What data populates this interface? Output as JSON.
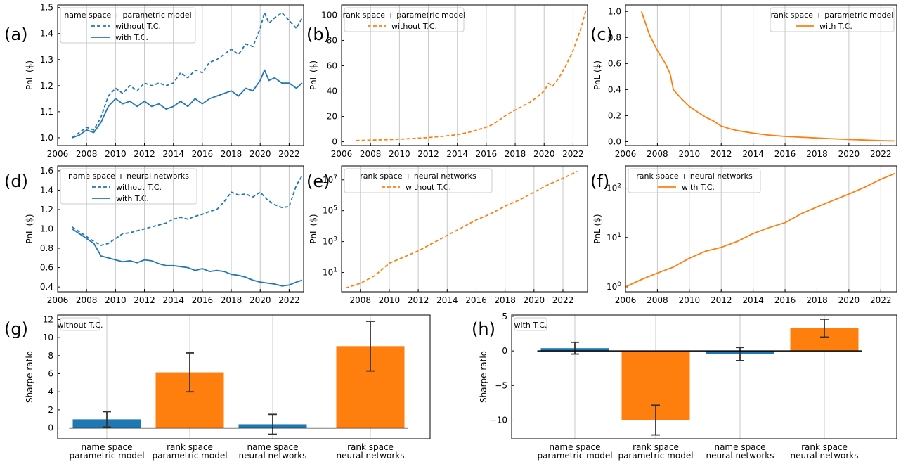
{
  "colors": {
    "blue": "#1f77b4",
    "orange": "#ff7f0e",
    "grid": "#c8c8c8",
    "axis": "#000000",
    "errorbar": "#333333"
  },
  "chart_data": [
    {
      "panel_label": "(a)",
      "type": "line",
      "xlim": [
        2006,
        2023
      ],
      "ylim": [
        0.97,
        1.51
      ],
      "yscale": "linear",
      "ylabel": "PnL ($)",
      "xticks": [
        2006,
        2008,
        2010,
        2012,
        2014,
        2016,
        2018,
        2020,
        2022
      ],
      "yticks": [
        1.0,
        1.1,
        1.2,
        1.3,
        1.4,
        1.5
      ],
      "ytick_labels": [
        "1.0",
        "1.1",
        "1.2",
        "1.3",
        "1.4",
        "1.5"
      ],
      "grid": "vertical",
      "legend": {
        "title": "name space + parametric model",
        "placement": "top-left"
      },
      "series": [
        {
          "name": "without T.C.",
          "color": "#1f77b4",
          "dash": true,
          "x": [
            2007.0,
            2007.5,
            2008.0,
            2008.5,
            2009.0,
            2009.5,
            2010.0,
            2010.5,
            2011.0,
            2011.5,
            2012.0,
            2012.5,
            2013.0,
            2013.5,
            2014.0,
            2014.5,
            2015.0,
            2015.5,
            2016.0,
            2016.5,
            2017.0,
            2017.5,
            2018.0,
            2018.5,
            2019.0,
            2019.5,
            2020.0,
            2020.3,
            2020.6,
            2021.0,
            2021.5,
            2022.0,
            2022.5,
            2022.9
          ],
          "y": [
            1.0,
            1.02,
            1.04,
            1.03,
            1.08,
            1.16,
            1.19,
            1.17,
            1.2,
            1.18,
            1.21,
            1.2,
            1.21,
            1.2,
            1.21,
            1.25,
            1.23,
            1.26,
            1.25,
            1.29,
            1.3,
            1.32,
            1.34,
            1.32,
            1.36,
            1.35,
            1.42,
            1.48,
            1.44,
            1.46,
            1.48,
            1.45,
            1.42,
            1.46
          ]
        },
        {
          "name": "with T.C.",
          "color": "#1f77b4",
          "dash": false,
          "x": [
            2007.0,
            2007.5,
            2008.0,
            2008.5,
            2009.0,
            2009.5,
            2010.0,
            2010.5,
            2011.0,
            2011.5,
            2012.0,
            2012.5,
            2013.0,
            2013.5,
            2014.0,
            2014.5,
            2015.0,
            2015.5,
            2016.0,
            2016.5,
            2017.0,
            2017.5,
            2018.0,
            2018.5,
            2019.0,
            2019.5,
            2020.0,
            2020.3,
            2020.6,
            2021.0,
            2021.5,
            2022.0,
            2022.5,
            2022.9
          ],
          "y": [
            1.0,
            1.01,
            1.03,
            1.02,
            1.06,
            1.12,
            1.15,
            1.13,
            1.14,
            1.12,
            1.14,
            1.12,
            1.13,
            1.11,
            1.12,
            1.14,
            1.12,
            1.15,
            1.13,
            1.15,
            1.16,
            1.17,
            1.18,
            1.16,
            1.19,
            1.18,
            1.22,
            1.26,
            1.22,
            1.23,
            1.21,
            1.21,
            1.19,
            1.21
          ]
        }
      ]
    },
    {
      "panel_label": "(b)",
      "type": "line",
      "xlim": [
        2006,
        2023
      ],
      "ylim": [
        -3,
        108
      ],
      "yscale": "linear",
      "ylabel": "PnL ($)",
      "xticks": [
        2006,
        2008,
        2010,
        2012,
        2014,
        2016,
        2018,
        2020,
        2022
      ],
      "yticks": [
        0,
        20,
        40,
        60,
        80,
        100
      ],
      "ytick_labels": [
        "0",
        "20",
        "40",
        "60",
        "80",
        "100"
      ],
      "grid": "vertical",
      "legend": {
        "title": "rank space + parametric model",
        "placement": "top-left"
      },
      "series": [
        {
          "name": "without T.C.",
          "color": "#ff7f0e",
          "dash": true,
          "x": [
            2007.0,
            2008.0,
            2009.0,
            2010.0,
            2011.0,
            2012.0,
            2013.0,
            2014.0,
            2015.0,
            2016.0,
            2016.5,
            2017.0,
            2017.5,
            2018.0,
            2018.5,
            2019.0,
            2019.5,
            2020.0,
            2020.3,
            2020.6,
            2021.0,
            2021.5,
            2022.0,
            2022.5,
            2022.9
          ],
          "y": [
            1.0,
            1.3,
            1.6,
            2.0,
            2.6,
            3.3,
            4.3,
            5.6,
            8.0,
            11.5,
            14.0,
            18.0,
            22.0,
            25.0,
            28.0,
            31.0,
            35.0,
            40.0,
            46.0,
            44.0,
            50.0,
            60.0,
            72.0,
            88.0,
            104.0
          ]
        }
      ]
    },
    {
      "panel_label": "(c)",
      "type": "line",
      "xlim": [
        2006,
        2023
      ],
      "ylim": [
        -0.03,
        1.05
      ],
      "yscale": "linear",
      "ylabel": "PnL ($)",
      "xticks": [
        2006,
        2008,
        2010,
        2012,
        2014,
        2016,
        2018,
        2020,
        2022
      ],
      "yticks": [
        0.0,
        0.2,
        0.4,
        0.6,
        0.8,
        1.0
      ],
      "ytick_labels": [
        "0.0",
        "0.2",
        "0.4",
        "0.6",
        "0.8",
        "1.0"
      ],
      "grid": "vertical",
      "legend": {
        "title": "rank space + parametric model",
        "placement": "top-right"
      },
      "series": [
        {
          "name": "with T.C.",
          "color": "#ff7f0e",
          "dash": false,
          "x": [
            2007.0,
            2007.2,
            2007.5,
            2008.0,
            2008.5,
            2008.8,
            2009.0,
            2009.5,
            2010.0,
            2010.5,
            2011.0,
            2011.5,
            2012.0,
            2012.5,
            2013.0,
            2014.0,
            2015.0,
            2016.0,
            2017.0,
            2018.0,
            2019.0,
            2020.0,
            2021.0,
            2022.0,
            2022.9
          ],
          "y": [
            1.0,
            0.93,
            0.82,
            0.7,
            0.6,
            0.52,
            0.4,
            0.33,
            0.27,
            0.23,
            0.19,
            0.16,
            0.12,
            0.1,
            0.085,
            0.065,
            0.05,
            0.04,
            0.034,
            0.028,
            0.022,
            0.017,
            0.012,
            0.008,
            0.005
          ]
        }
      ]
    },
    {
      "panel_label": "(d)",
      "type": "line",
      "xlim": [
        2006,
        2023
      ],
      "ylim": [
        0.35,
        1.65
      ],
      "yscale": "linear",
      "ylabel": "PnL ($)",
      "xticks": [
        2006,
        2008,
        2010,
        2012,
        2014,
        2016,
        2018,
        2020,
        2022
      ],
      "yticks": [
        0.4,
        0.6,
        0.8,
        1.0,
        1.2,
        1.4,
        1.6
      ],
      "ytick_labels": [
        "0.4",
        "0.6",
        "0.8",
        "1.0",
        "1.2",
        "1.4",
        "1.6"
      ],
      "grid": "vertical",
      "legend": {
        "title": "name space + neural networks",
        "placement": "top-left"
      },
      "series": [
        {
          "name": "without T.C.",
          "color": "#1f77b4",
          "dash": true,
          "x": [
            2007.0,
            2007.5,
            2008.0,
            2008.5,
            2009.0,
            2009.5,
            2010.0,
            2010.5,
            2011.0,
            2011.5,
            2012.0,
            2012.5,
            2013.0,
            2013.5,
            2014.0,
            2014.5,
            2015.0,
            2015.5,
            2016.0,
            2016.5,
            2017.0,
            2017.5,
            2018.0,
            2018.5,
            2019.0,
            2019.5,
            2020.0,
            2020.5,
            2021.0,
            2021.5,
            2022.0,
            2022.5,
            2022.9
          ],
          "y": [
            1.02,
            0.97,
            0.92,
            0.87,
            0.83,
            0.85,
            0.9,
            0.95,
            0.96,
            0.98,
            1.0,
            1.02,
            1.04,
            1.06,
            1.1,
            1.12,
            1.1,
            1.13,
            1.15,
            1.18,
            1.2,
            1.28,
            1.38,
            1.35,
            1.36,
            1.33,
            1.38,
            1.3,
            1.25,
            1.22,
            1.23,
            1.45,
            1.55
          ]
        },
        {
          "name": "with T.C.",
          "color": "#1f77b4",
          "dash": false,
          "x": [
            2007.0,
            2007.5,
            2008.0,
            2008.5,
            2009.0,
            2009.5,
            2010.0,
            2010.5,
            2011.0,
            2011.5,
            2012.0,
            2012.5,
            2013.0,
            2013.5,
            2014.0,
            2014.5,
            2015.0,
            2015.5,
            2016.0,
            2016.5,
            2017.0,
            2017.5,
            2018.0,
            2018.5,
            2019.0,
            2019.5,
            2020.0,
            2020.5,
            2021.0,
            2021.5,
            2022.0,
            2022.5,
            2022.9
          ],
          "y": [
            1.0,
            0.95,
            0.9,
            0.85,
            0.72,
            0.7,
            0.68,
            0.66,
            0.67,
            0.65,
            0.68,
            0.67,
            0.64,
            0.62,
            0.62,
            0.61,
            0.6,
            0.57,
            0.59,
            0.56,
            0.57,
            0.56,
            0.53,
            0.52,
            0.5,
            0.47,
            0.45,
            0.44,
            0.43,
            0.41,
            0.42,
            0.45,
            0.47
          ]
        }
      ]
    },
    {
      "panel_label": "(e)",
      "type": "line",
      "xlim": [
        2006.7,
        2023.7
      ],
      "ylim": [
        -0.25,
        7.9
      ],
      "yscale": "log10",
      "ylabel": "PnL ($)",
      "xticks": [
        2008,
        2010,
        2012,
        2014,
        2016,
        2018,
        2020,
        2022
      ],
      "yticks": [
        1,
        3,
        5,
        7
      ],
      "ytick_labels": [
        "10^1",
        "10^3",
        "10^5",
        "10^7"
      ],
      "grid": "vertical",
      "legend": {
        "title": "rank space + neural networks",
        "placement": "top-left"
      },
      "series": [
        {
          "name": "without T.C.",
          "color": "#ff7f0e",
          "dash": true,
          "x": [
            2007.0,
            2008.0,
            2009.0,
            2010.0,
            2011.0,
            2012.0,
            2013.0,
            2014.0,
            2015.0,
            2016.0,
            2017.0,
            2018.0,
            2019.0,
            2020.0,
            2021.0,
            2022.0,
            2023.0
          ],
          "y": [
            0.0,
            0.3,
            0.8,
            1.6,
            2.0,
            2.4,
            2.9,
            3.4,
            3.9,
            4.4,
            4.8,
            5.3,
            5.7,
            6.2,
            6.7,
            7.1,
            7.55
          ]
        }
      ]
    },
    {
      "panel_label": "(f)",
      "type": "line",
      "xlim": [
        2006,
        2023
      ],
      "ylim": [
        -0.1,
        2.45
      ],
      "yscale": "log10",
      "ylabel": "PnL ($)",
      "xticks": [
        2006,
        2008,
        2010,
        2012,
        2014,
        2016,
        2018,
        2020,
        2022
      ],
      "yticks": [
        0,
        1,
        2
      ],
      "ytick_labels": [
        "10^0",
        "10^1",
        "10^2"
      ],
      "grid": "vertical",
      "legend": {
        "title": "rank space + neural networks",
        "placement": "top-left"
      },
      "series": [
        {
          "name": "with T.C.",
          "color": "#ff7f0e",
          "dash": false,
          "x": [
            2006.0,
            2007.0,
            2008.0,
            2009.0,
            2010.0,
            2011.0,
            2012.0,
            2013.0,
            2014.0,
            2015.0,
            2016.0,
            2017.0,
            2018.0,
            2019.0,
            2020.0,
            2021.0,
            2022.0,
            2022.9
          ],
          "y": [
            0.0,
            0.15,
            0.28,
            0.4,
            0.58,
            0.72,
            0.8,
            0.92,
            1.08,
            1.2,
            1.3,
            1.48,
            1.62,
            1.75,
            1.88,
            2.02,
            2.18,
            2.3
          ]
        }
      ]
    },
    {
      "panel_label": "(g)",
      "type": "bar",
      "ylabel": "Sharpe ratio",
      "ylim": [
        -1.2,
        12.5
      ],
      "yticks": [
        0,
        2,
        4,
        6,
        8,
        10,
        12
      ],
      "ytick_labels": [
        "0",
        "2",
        "4",
        "6",
        "8",
        "10",
        "12"
      ],
      "grid": "vertical",
      "legend": {
        "title": "without T.C.",
        "placement": "top-left"
      },
      "categories": [
        "name space\nparametric model",
        "rank space\nparametric model",
        "name space\nneural networks",
        "rank space\nneural networks"
      ],
      "values": [
        0.95,
        6.15,
        0.4,
        9.05
      ],
      "errors": [
        0.85,
        2.15,
        1.1,
        2.75
      ],
      "bar_colors": [
        "#1f77b4",
        "#ff7f0e",
        "#1f77b4",
        "#ff7f0e"
      ]
    },
    {
      "panel_label": "(h)",
      "type": "bar",
      "ylabel": "Sharpe ratio",
      "ylim": [
        -12.7,
        5.2
      ],
      "yticks": [
        -10,
        -5,
        0,
        5
      ],
      "ytick_labels": [
        "−10",
        "−5",
        "0",
        "5"
      ],
      "grid": "vertical",
      "legend": {
        "title": "with T.C.",
        "placement": "top-left"
      },
      "categories": [
        "name space\nparametric model",
        "rank space\nparametric model",
        "name space\nneural networks",
        "rank space\nneural networks"
      ],
      "values": [
        0.4,
        -10.0,
        -0.45,
        3.3
      ],
      "errors": [
        0.85,
        2.15,
        0.95,
        1.3
      ],
      "bar_colors": [
        "#1f77b4",
        "#ff7f0e",
        "#1f77b4",
        "#ff7f0e"
      ]
    }
  ]
}
